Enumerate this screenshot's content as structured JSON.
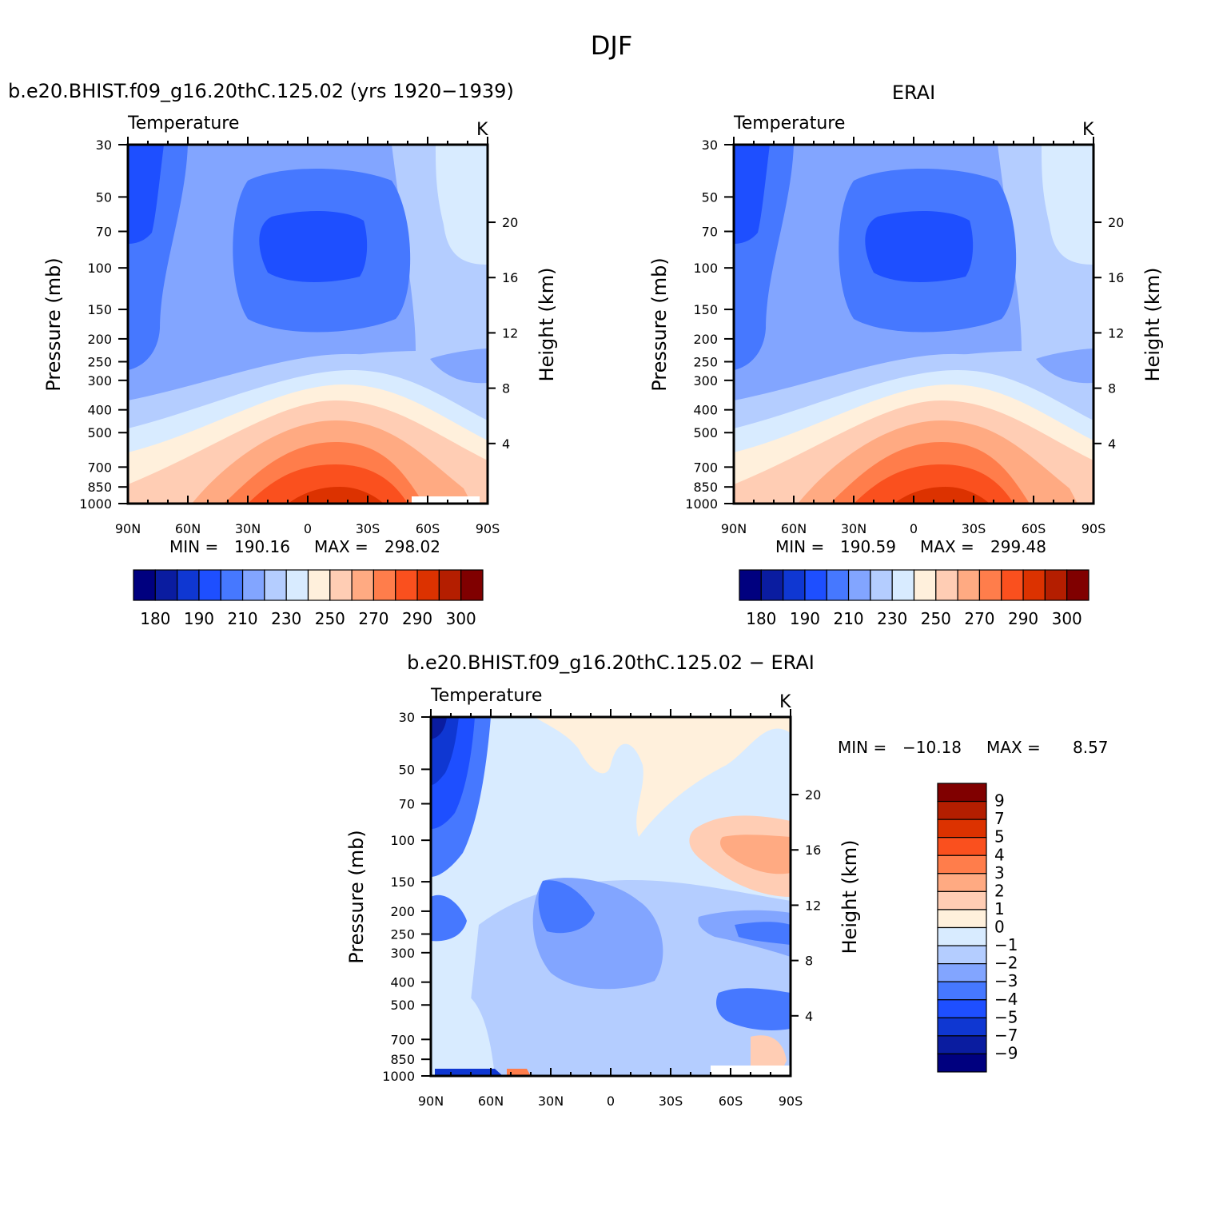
{
  "title": "DJF",
  "colors": {
    "abs": [
      "#00007f",
      "#0a1ca0",
      "#0f37d2",
      "#1e4fff",
      "#4678ff",
      "#82a5ff",
      "#b4cdff",
      "#d8ebff",
      "#fff0dc",
      "#ffcdb4",
      "#ffaa82",
      "#ff7d4b",
      "#fa501e",
      "#dc3200",
      "#b41e00",
      "#800000"
    ],
    "diff": [
      "#00007f",
      "#0a1ca0",
      "#0f37d2",
      "#1e4fff",
      "#4678ff",
      "#82a5ff",
      "#b4cdff",
      "#d8ebff",
      "#fff0dc",
      "#ffcdb4",
      "#ffaa82",
      "#ff7d4b",
      "#fa501e",
      "#dc3200",
      "#b41e00",
      "#800000"
    ]
  },
  "chart_data": [
    {
      "id": "model",
      "type": "contour",
      "left_title": "b.e20.BHIST.f09_g16.20thC.125.02 (yrs 1920−1939)",
      "variable": "Temperature",
      "units": "K",
      "ylabel": "Pressure (mb)",
      "y2label": "Height (km)",
      "x_ticks": [
        "90N",
        "60N",
        "30N",
        "0",
        "30S",
        "60S",
        "90S"
      ],
      "y_ticks": [
        "30",
        "50",
        "70",
        "100",
        "150",
        "200",
        "250",
        "300",
        "400",
        "500",
        "700",
        "850",
        "1000"
      ],
      "y2_ticks": [
        "20",
        "16",
        "12",
        "8",
        "4"
      ],
      "min": "190.16",
      "max": "298.02",
      "min_label": "MIN =",
      "max_label": "MAX =",
      "levels": [
        "180",
        "190",
        "210",
        "230",
        "250",
        "270",
        "290",
        "300"
      ]
    },
    {
      "id": "obs",
      "type": "contour",
      "center_title": "ERAI",
      "variable": "Temperature",
      "units": "K",
      "ylabel": "Pressure (mb)",
      "y2label": "Height (km)",
      "x_ticks": [
        "90N",
        "60N",
        "30N",
        "0",
        "30S",
        "60S",
        "90S"
      ],
      "y_ticks": [
        "30",
        "50",
        "70",
        "100",
        "150",
        "200",
        "250",
        "300",
        "400",
        "500",
        "700",
        "850",
        "1000"
      ],
      "y2_ticks": [
        "20",
        "16",
        "12",
        "8",
        "4"
      ],
      "min": "190.59",
      "max": "299.48",
      "min_label": "MIN =",
      "max_label": "MAX =",
      "levels": [
        "180",
        "190",
        "210",
        "230",
        "250",
        "270",
        "290",
        "300"
      ]
    },
    {
      "id": "diff",
      "type": "contour",
      "center_title": "b.e20.BHIST.f09_g16.20thC.125.02 − ERAI",
      "variable": "Temperature",
      "units": "K",
      "ylabel": "Pressure (mb)",
      "y2label": "Height (km)",
      "x_ticks": [
        "90N",
        "60N",
        "30N",
        "0",
        "30S",
        "60S",
        "90S"
      ],
      "y_ticks": [
        "30",
        "50",
        "70",
        "100",
        "150",
        "200",
        "250",
        "300",
        "400",
        "500",
        "700",
        "850",
        "1000"
      ],
      "y2_ticks": [
        "20",
        "16",
        "12",
        "8",
        "4"
      ],
      "min": "−10.18",
      "max": "8.57",
      "min_label": "MIN =",
      "max_label": "MAX =",
      "levels": [
        "9",
        "7",
        "5",
        "4",
        "3",
        "2",
        "1",
        "0",
        "−1",
        "−2",
        "−3",
        "−4",
        "−5",
        "−7",
        "−9"
      ]
    }
  ]
}
